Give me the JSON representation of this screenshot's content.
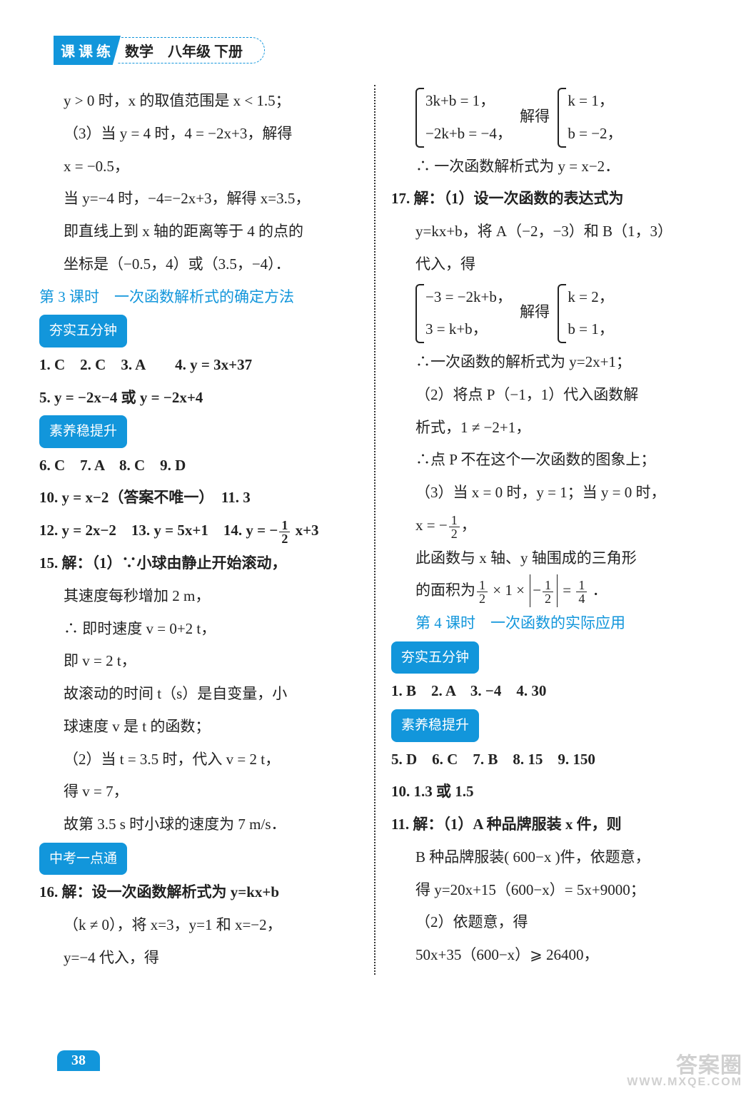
{
  "header": {
    "badge": "课 课 练",
    "title": "数学　八年级 下册"
  },
  "left": {
    "l1a": "y > 0 时，x 的取值范围是 x < 1.5；",
    "l1b": "（3）当 y = 4 时，4 = −2x+3，解得",
    "l1c": "x = −0.5，",
    "l1d": "当 y=−4 时，−4=−2x+3，解得 x=3.5，",
    "l1e": "即直线上到 x 轴的距离等于 4 的点的",
    "l1f": "坐标是（−0.5，4）或（3.5，−4）．",
    "sec3": "第 3 课时　一次函数解析式的确定方法",
    "pill1": "夯实五分钟",
    "a1": "1. C　2. C　3. A　　4. y = 3x+37",
    "a2": "5. y = −2x−4 或 y = −2x+4",
    "pill2": "素养稳提升",
    "a3": "6. C　7. A　8. C　9. D",
    "a4": "10. y = x−2（答案不唯一）　11. 3",
    "a5a": "12. y = 2x−2　13. y = 5x+1　14. y = −",
    "a5b": " x+3",
    "q15a": "15. 解：（1）∵小球由静止开始滚动，",
    "q15b": "其速度每秒增加 2 m，",
    "q15c": "∴ 即时速度 v = 0+2 t，",
    "q15d": "即 v = 2 t，",
    "q15e": "故滚动的时间 t（s）是自变量，小",
    "q15f": "球速度 v 是 t 的函数；",
    "q15g": "（2）当 t = 3.5 时，代入 v = 2 t，",
    "q15h": "得 v = 7，",
    "q15i": "故第 3.5 s 时小球的速度为 7 m/s．",
    "pill3": "中考一点通",
    "q16a": "16. 解：设一次函数解析式为 y=kx+b",
    "q16b": "（k ≠ 0），将 x=3，y=1 和 x=−2，",
    "q16c": "y=−4 代入，得"
  },
  "right": {
    "b1top": "3k+b = 1，",
    "b1bot": "−2k+b = −4，",
    "b1mid": "解得",
    "b1rtop": "k = 1，",
    "b1rbot": "b = −2，",
    "r1": "∴ 一次函数解析式为 y = x−2．",
    "q17a": "17. 解：（1）设一次函数的表达式为",
    "q17b": "y=kx+b，将 A（−2，−3）和 B（1，3）",
    "q17c": "代入，得",
    "b2top": "−3 = −2k+b，",
    "b2bot": "3 = k+b，",
    "b2mid": "解得",
    "b2rtop": "k = 2，",
    "b2rbot": "b = 1，",
    "q17d": "∴一次函数的解析式为 y=2x+1；",
    "q17e": "（2）将点 P（−1，1）代入函数解",
    "q17f": "析式，1 ≠ −2+1，",
    "q17g": "∴点 P 不在这个一次函数的图象上；",
    "q17h": "（3）当 x = 0 时，y = 1；当 y = 0 时，",
    "q17i_pre": "x = −",
    "q17i_post": "，",
    "q17j": "此函数与 x 轴、y 轴围成的三角形",
    "q17k_pre": "的面积为",
    "q17k_mid1": " × 1 × ",
    "q17k_mid2": "−",
    "q17k_mid3": " = ",
    "q17k_post": " ．",
    "sec4": "第 4 课时　一次函数的实际应用",
    "pill1": "夯实五分钟",
    "a1": "1. B　2. A　3. −4　4. 30",
    "pill2": "素养稳提升",
    "a2": "5. D　6. C　7. B　8. 15　9. 150",
    "a3": "10. 1.3 或 1.5",
    "q11a": "11. 解：（1）A 种品牌服装 x 件，则",
    "q11b": "B 种品牌服装( 600−x )件，依题意，",
    "q11c": "得 y=20x+15（600−x）= 5x+9000；",
    "q11d": "（2）依题意，得",
    "q11e": "50x+35（600−x）⩾ 26400，"
  },
  "page_number": "38",
  "watermark_big": "答案圈",
  "watermark_small": "WWW.MXQE.COM",
  "colors": {
    "accent": "#1296db",
    "text": "#222222",
    "bg": "#ffffff"
  }
}
